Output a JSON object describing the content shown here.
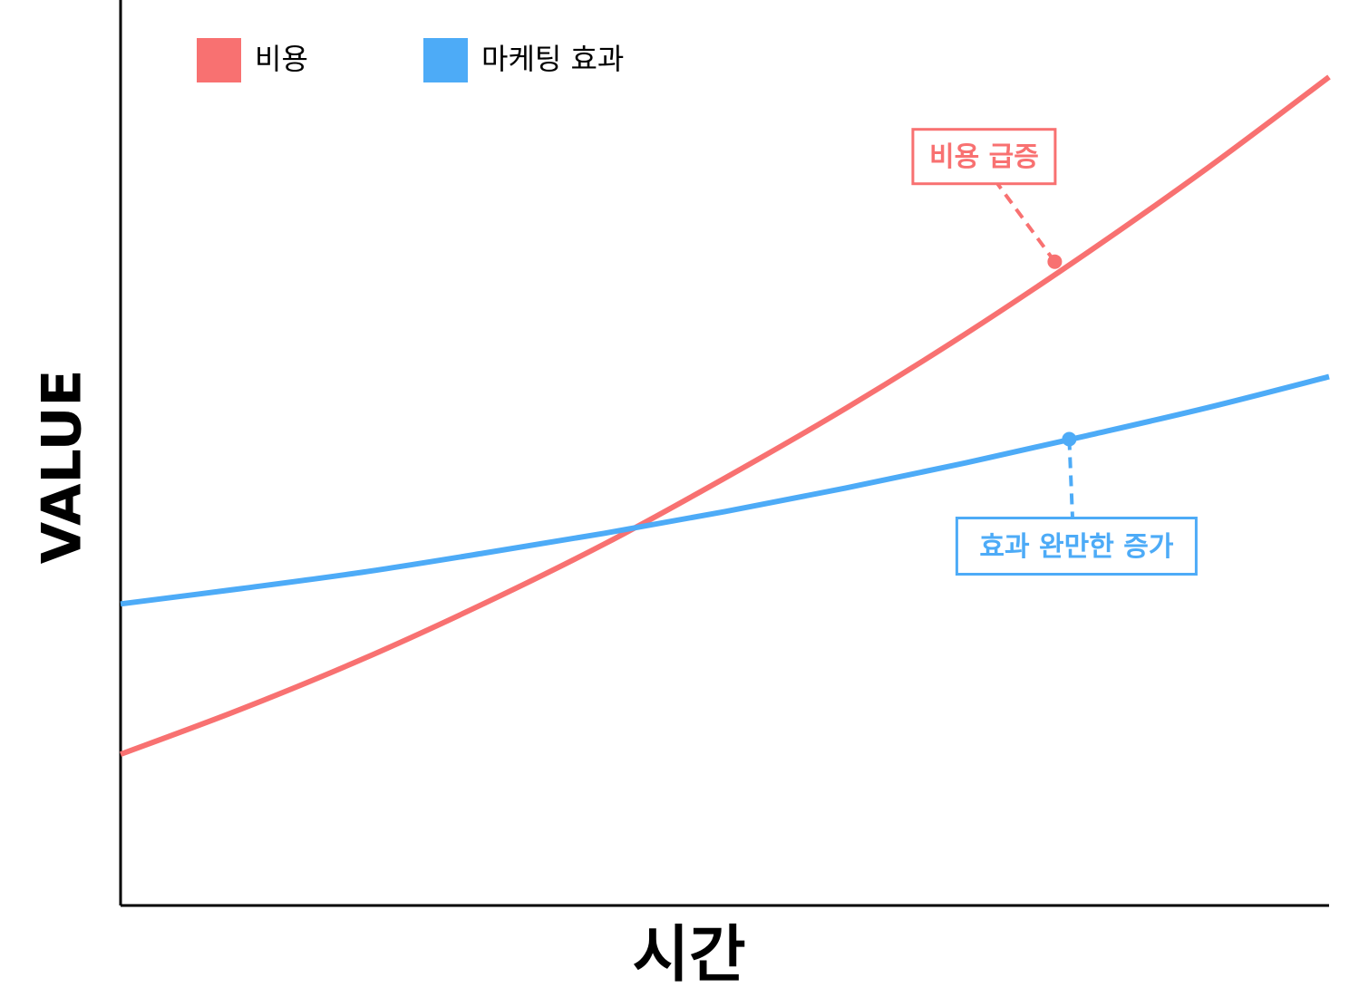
{
  "chart_data": {
    "type": "line",
    "xlabel": "시간",
    "ylabel": "VALUE",
    "x": [
      0,
      1,
      2,
      3,
      4,
      5,
      6,
      7,
      8,
      9,
      10
    ],
    "xlim": [
      0,
      10
    ],
    "ylim": [
      0,
      100
    ],
    "legend": "top-left",
    "series": [
      {
        "name": "비용",
        "color": "#f87171",
        "values": [
          16.7,
          21.7,
          27.2,
          33.3,
          39.9,
          47.2,
          54.9,
          63.2,
          72.1,
          81.5,
          91.5
        ]
      },
      {
        "name": "마케팅 효과",
        "color": "#4dabf7",
        "values": [
          33.3,
          35.0,
          36.8,
          38.9,
          41.1,
          43.5,
          46.1,
          48.9,
          51.9,
          55.0,
          58.4
        ]
      }
    ],
    "annotations": [
      {
        "text": "비용 급증",
        "x": 7.73,
        "y": 71.1,
        "series": 0
      },
      {
        "text": "효과 완만한 증가",
        "x": 7.85,
        "y": 51.5,
        "series": 1
      }
    ]
  }
}
